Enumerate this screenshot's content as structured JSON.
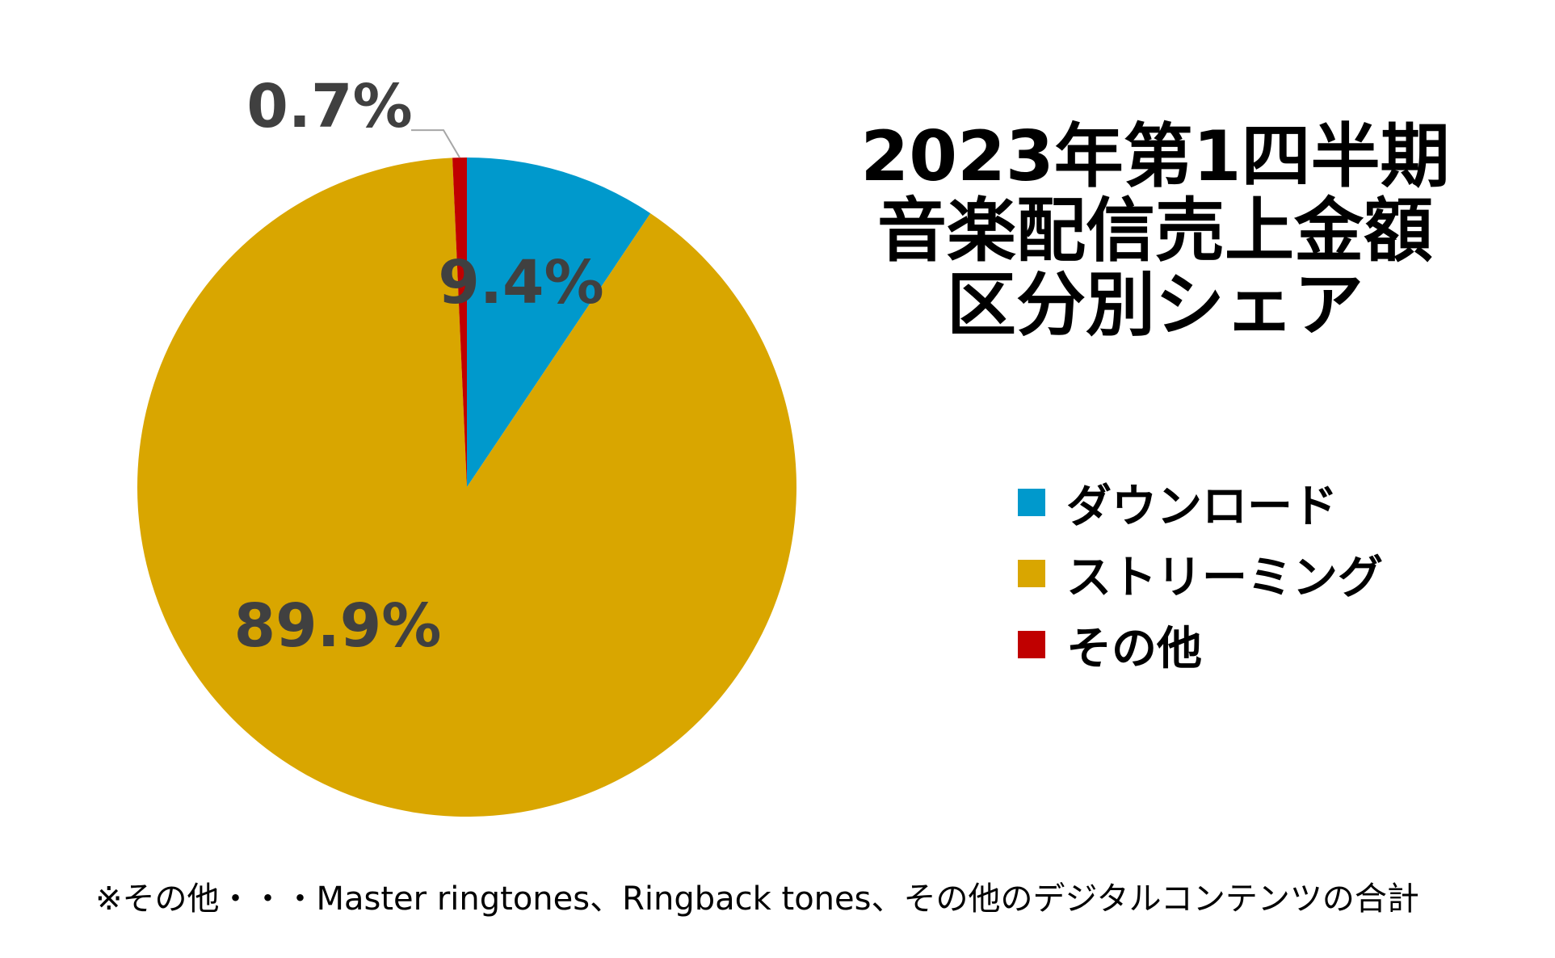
{
  "chart_data": {
    "type": "pie",
    "title_lines": [
      "2023年第1四半期",
      "音楽配信売上金額",
      "区分別シェア"
    ],
    "slices": [
      {
        "name": "ダウンロード",
        "value": 9.4,
        "label": "9.4%",
        "color": "#0099CC"
      },
      {
        "name": "ストリーミング",
        "value": 89.9,
        "label": "89.9%",
        "color": "#D9A600"
      },
      {
        "name": "その他",
        "value": 0.7,
        "label": "0.7%",
        "color": "#C00000"
      }
    ],
    "legend_placement": "right",
    "start_angle_deg": 0,
    "direction": "clockwise"
  },
  "footnote": "※その他・・・Master ringtones、Ringback tones、その他のデジタルコンテンツの合計"
}
